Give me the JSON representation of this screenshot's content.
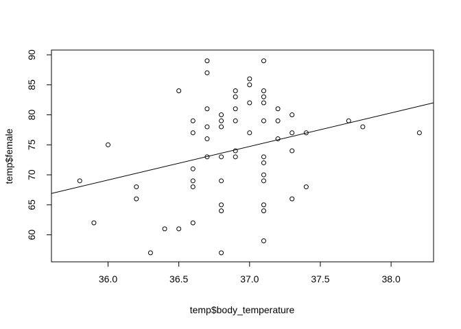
{
  "chart_data": {
    "type": "scatter",
    "title": "",
    "xlabel": "temp$body_temperature",
    "ylabel": "temp$female",
    "xlim": [
      35.6,
      38.3
    ],
    "ylim": [
      55.5,
      90.8
    ],
    "xticks": [
      "36.0",
      "36.5",
      "37.0",
      "37.5",
      "38.0"
    ],
    "yticks": [
      "60",
      "65",
      "70",
      "75",
      "80",
      "85",
      "90"
    ],
    "grid": false,
    "legend": "none",
    "points": [
      {
        "x": 35.8,
        "y": 69
      },
      {
        "x": 35.9,
        "y": 62
      },
      {
        "x": 36.0,
        "y": 75
      },
      {
        "x": 36.2,
        "y": 68
      },
      {
        "x": 36.2,
        "y": 66
      },
      {
        "x": 36.3,
        "y": 57
      },
      {
        "x": 36.4,
        "y": 61
      },
      {
        "x": 36.5,
        "y": 61
      },
      {
        "x": 36.5,
        "y": 84
      },
      {
        "x": 36.6,
        "y": 79
      },
      {
        "x": 36.6,
        "y": 77
      },
      {
        "x": 36.6,
        "y": 71
      },
      {
        "x": 36.6,
        "y": 69
      },
      {
        "x": 36.6,
        "y": 68
      },
      {
        "x": 36.6,
        "y": 62
      },
      {
        "x": 36.7,
        "y": 89
      },
      {
        "x": 36.7,
        "y": 87
      },
      {
        "x": 36.7,
        "y": 81
      },
      {
        "x": 36.7,
        "y": 78
      },
      {
        "x": 36.7,
        "y": 76
      },
      {
        "x": 36.7,
        "y": 73
      },
      {
        "x": 36.8,
        "y": 80
      },
      {
        "x": 36.8,
        "y": 79
      },
      {
        "x": 36.8,
        "y": 78
      },
      {
        "x": 36.8,
        "y": 73
      },
      {
        "x": 36.8,
        "y": 69
      },
      {
        "x": 36.8,
        "y": 65
      },
      {
        "x": 36.8,
        "y": 64
      },
      {
        "x": 36.8,
        "y": 57
      },
      {
        "x": 36.9,
        "y": 84
      },
      {
        "x": 36.9,
        "y": 83
      },
      {
        "x": 36.9,
        "y": 81
      },
      {
        "x": 36.9,
        "y": 79
      },
      {
        "x": 36.9,
        "y": 74
      },
      {
        "x": 36.9,
        "y": 73
      },
      {
        "x": 37.0,
        "y": 86
      },
      {
        "x": 37.0,
        "y": 85
      },
      {
        "x": 37.0,
        "y": 82
      },
      {
        "x": 37.0,
        "y": 77
      },
      {
        "x": 37.1,
        "y": 89
      },
      {
        "x": 37.1,
        "y": 84
      },
      {
        "x": 37.1,
        "y": 83
      },
      {
        "x": 37.1,
        "y": 82
      },
      {
        "x": 37.1,
        "y": 79
      },
      {
        "x": 37.1,
        "y": 73
      },
      {
        "x": 37.1,
        "y": 72
      },
      {
        "x": 37.1,
        "y": 70
      },
      {
        "x": 37.1,
        "y": 69
      },
      {
        "x": 37.1,
        "y": 65
      },
      {
        "x": 37.1,
        "y": 64
      },
      {
        "x": 37.1,
        "y": 59
      },
      {
        "x": 37.2,
        "y": 81
      },
      {
        "x": 37.2,
        "y": 79
      },
      {
        "x": 37.2,
        "y": 76
      },
      {
        "x": 37.3,
        "y": 80
      },
      {
        "x": 37.3,
        "y": 77
      },
      {
        "x": 37.3,
        "y": 74
      },
      {
        "x": 37.3,
        "y": 66
      },
      {
        "x": 37.4,
        "y": 77
      },
      {
        "x": 37.4,
        "y": 68
      },
      {
        "x": 37.7,
        "y": 79
      },
      {
        "x": 37.8,
        "y": 78
      },
      {
        "x": 38.2,
        "y": 77
      }
    ],
    "regression_line": {
      "x": [
        35.6,
        38.3
      ],
      "y": [
        66.9,
        82.0
      ]
    },
    "colors": {
      "points": "#000000",
      "line": "#000000",
      "background": "#ffffff"
    }
  }
}
